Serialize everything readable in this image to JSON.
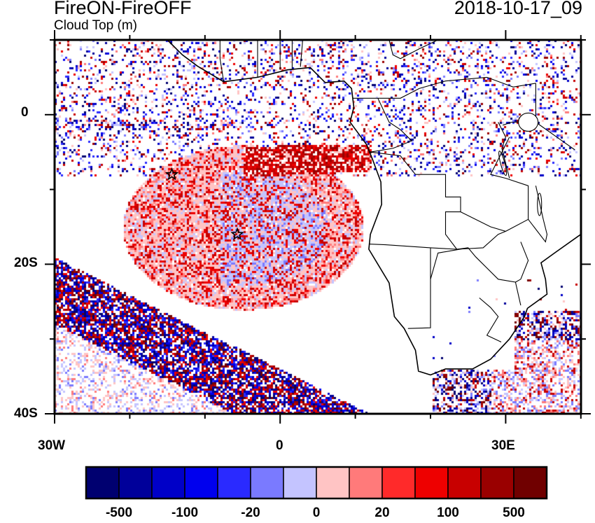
{
  "title": "FireON-FireOFF",
  "subtitle": "Cloud Top (m)",
  "timestamp": "2018-10-17_09",
  "map": {
    "lon_range": [
      -30,
      40
    ],
    "lat_range": [
      -40,
      10
    ],
    "x_tick_labels": [
      "30W",
      "0",
      "30E"
    ],
    "y_tick_labels": [
      "0",
      "20S",
      "40S"
    ],
    "markers": [
      {
        "type": "star",
        "lon": -14.4,
        "lat": -8
      },
      {
        "type": "star",
        "lon": -5.7,
        "lat": -16
      }
    ]
  },
  "colorbar": {
    "colors": [
      "#000070",
      "#00009a",
      "#0000c8",
      "#0000ee",
      "#2a2aff",
      "#7a7aff",
      "#c4c4ff",
      "#ffc4c4",
      "#ff7a7a",
      "#ff2a2a",
      "#ee0000",
      "#c80000",
      "#9a0000",
      "#700000"
    ],
    "labels": [
      "-500",
      "-100",
      "-20",
      "0",
      "20",
      "100",
      "500"
    ]
  }
}
